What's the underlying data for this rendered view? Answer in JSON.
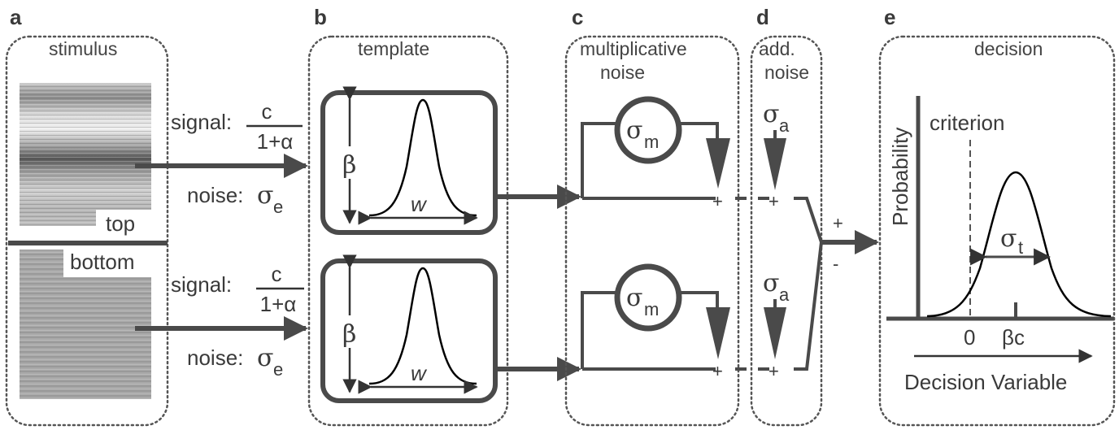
{
  "panels": {
    "a": {
      "letter": "a",
      "title": "stimulus",
      "top_label": "top",
      "bottom_label": "bottom"
    },
    "b": {
      "letter": "b",
      "title": "template",
      "amp_symbol": "β",
      "width_symbol": "w"
    },
    "c": {
      "letter": "c",
      "title_line1": "multiplicative",
      "title_line2": "noise",
      "sigma": "σ",
      "sigma_sub": "m",
      "plus": "+"
    },
    "d": {
      "letter": "d",
      "title_line1": "add.",
      "title_line2": "noise",
      "sigma": "σ",
      "sigma_sub": "a",
      "plus": "+"
    },
    "e": {
      "letter": "e",
      "title": "decision",
      "ylabel": "Probability",
      "criterion": "criterion",
      "sigma": "σ",
      "sigma_sub": "t",
      "tick_zero": "0",
      "tick_bc": "βc",
      "xlabel": "Decision Variable"
    }
  },
  "signal": {
    "label": "signal:",
    "numerator": "c",
    "denominator": "1+α"
  },
  "noise": {
    "label": "noise:",
    "sigma": "σ",
    "sub": "e"
  },
  "combiner": {
    "plus": "+",
    "minus": "-"
  },
  "colors": {
    "stroke": "#4a4a4a",
    "curve": "#000000",
    "border": "#555555"
  }
}
